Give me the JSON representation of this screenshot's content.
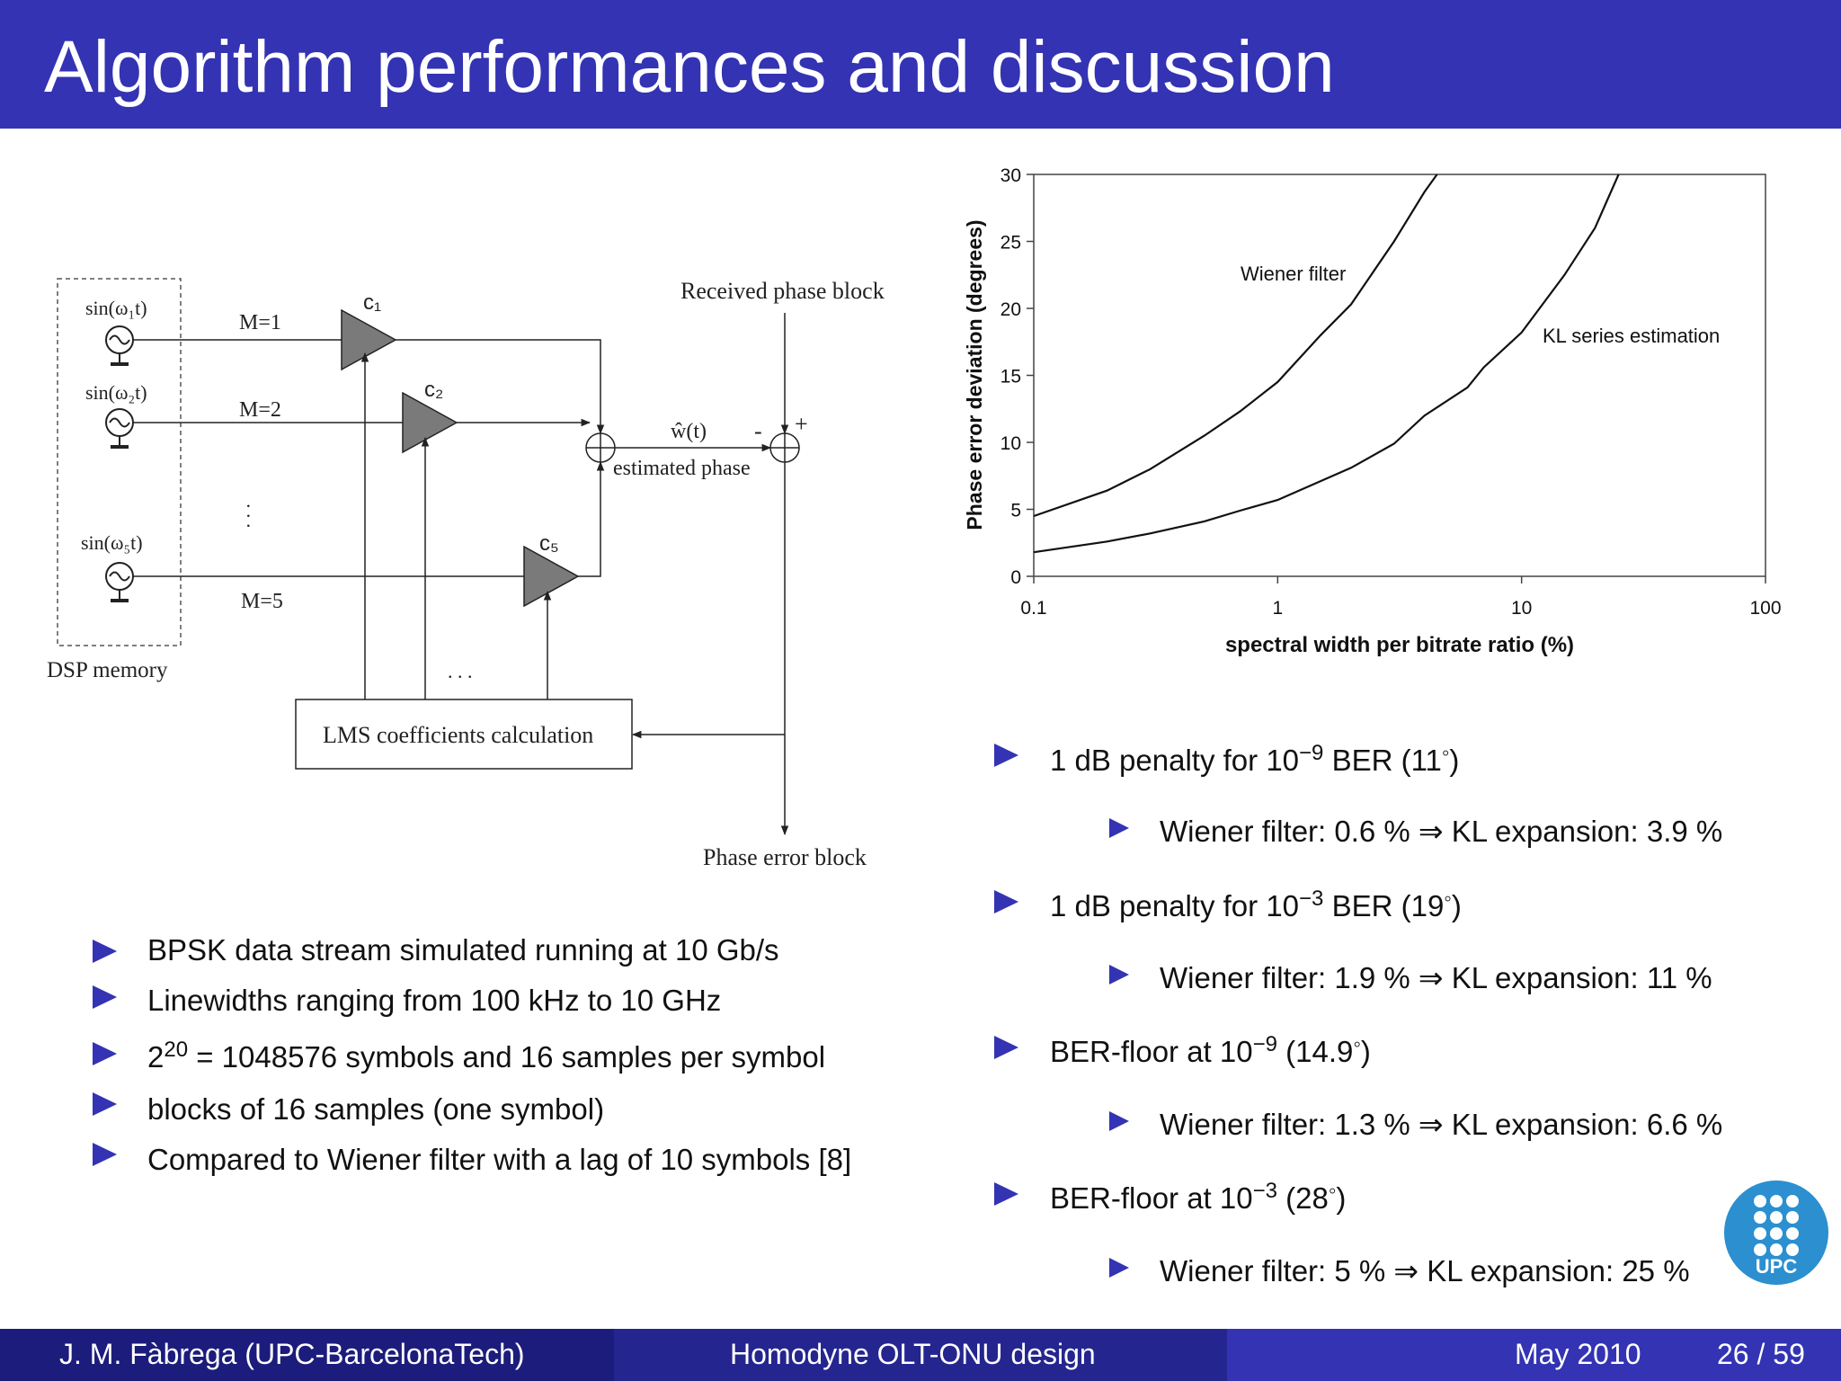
{
  "slide": {
    "title": "Algorithm performances and discussion"
  },
  "diagram": {
    "memory_label": "DSP memory",
    "osc1": "sin(ω₁t)",
    "osc2": "sin(ω₂t)",
    "osc5": "sin(ω₅t)",
    "m1": "M=1",
    "m2": "M=2",
    "m5": "M=5",
    "c1": "c₁",
    "c2": "c₂",
    "c5": "c₅",
    "received": "Received phase block",
    "w_hat": "ŵ(t)",
    "minus": "-",
    "plus": "+",
    "estimated": "estimated phase",
    "lms": "LMS coefficients calculation",
    "dots_h": ". . .",
    "phase_error": "Phase error block"
  },
  "chart_data": {
    "type": "line",
    "xscale": "log",
    "xlim": [
      0.1,
      100
    ],
    "ylim": [
      0,
      30
    ],
    "x_ticks": [
      "0.1",
      "1",
      "10",
      "100"
    ],
    "y_ticks": [
      "0",
      "5",
      "10",
      "15",
      "20",
      "25",
      "30"
    ],
    "xlabel": "spectral width per bitrate ratio (%)",
    "ylabel": "Phase error deviation (degrees)",
    "series": [
      {
        "name": "Wiener filter",
        "x": [
          0.1,
          0.2,
          0.3,
          0.5,
          0.7,
          1.0,
          1.5,
          2.0,
          3.0,
          4.0,
          4.5
        ],
        "y": [
          4.5,
          6.4,
          8.0,
          10.5,
          12.3,
          14.5,
          18.0,
          20.3,
          25.0,
          28.7,
          30.0
        ]
      },
      {
        "name": "KL series estimation",
        "x": [
          0.1,
          0.2,
          0.3,
          0.5,
          0.7,
          1.0,
          2.0,
          3.0,
          4.0,
          6.0,
          7.0,
          10.0,
          15.0,
          20.0,
          25.0
        ],
        "y": [
          1.8,
          2.6,
          3.2,
          4.1,
          4.9,
          5.7,
          8.1,
          9.9,
          12.0,
          14.1,
          15.6,
          18.2,
          22.5,
          26.0,
          30.0
        ]
      }
    ]
  },
  "left_bullets": [
    "BPSK data stream simulated running at 10 Gb/s",
    "Linewidths ranging from 100 kHz to 10 GHz",
    "= 1048576 symbols and 16 samples per symbol",
    "blocks of 16 samples (one symbol)",
    "Compared to Wiener filter with a lag of 10 symbols [8]"
  ],
  "left_exp": {
    "base": "2",
    "exp": "20"
  },
  "right_bullets": [
    {
      "pre": "1 dB penalty for 10",
      "exp": "−9",
      "post": " BER (11",
      "deg": "◦",
      "end": ")"
    },
    {
      "pre": "1 dB penalty for 10",
      "exp": "−3",
      "post": " BER (19",
      "deg": "◦",
      "end": ")"
    },
    {
      "pre": "BER-floor at 10",
      "exp": "−9",
      "post": " (14.9",
      "deg": "◦",
      "end": ")"
    },
    {
      "pre": "BER-floor at 10",
      "exp": "−3",
      "post": " (28",
      "deg": "◦",
      "end": ")"
    }
  ],
  "right_sub": [
    "Wiener filter: 0.6 % ⇒ KL expansion: 3.9 %",
    "Wiener filter: 1.9 % ⇒ KL expansion: 11 %",
    "Wiener filter: 1.3 % ⇒ KL expansion: 6.6 %",
    "Wiener filter: 5 % ⇒ KL expansion: 25 %"
  ],
  "footer": {
    "author": "J. M. Fàbrega  (UPC-BarcelonaTech)",
    "talk": "Homodyne OLT-ONU design",
    "date": "May 2010",
    "page": "26 / 59"
  },
  "logo": {
    "text": "UPC"
  },
  "colors": {
    "bar": "#3333b3",
    "bullet": "#3333b3",
    "logo": "#2b8fd0"
  }
}
